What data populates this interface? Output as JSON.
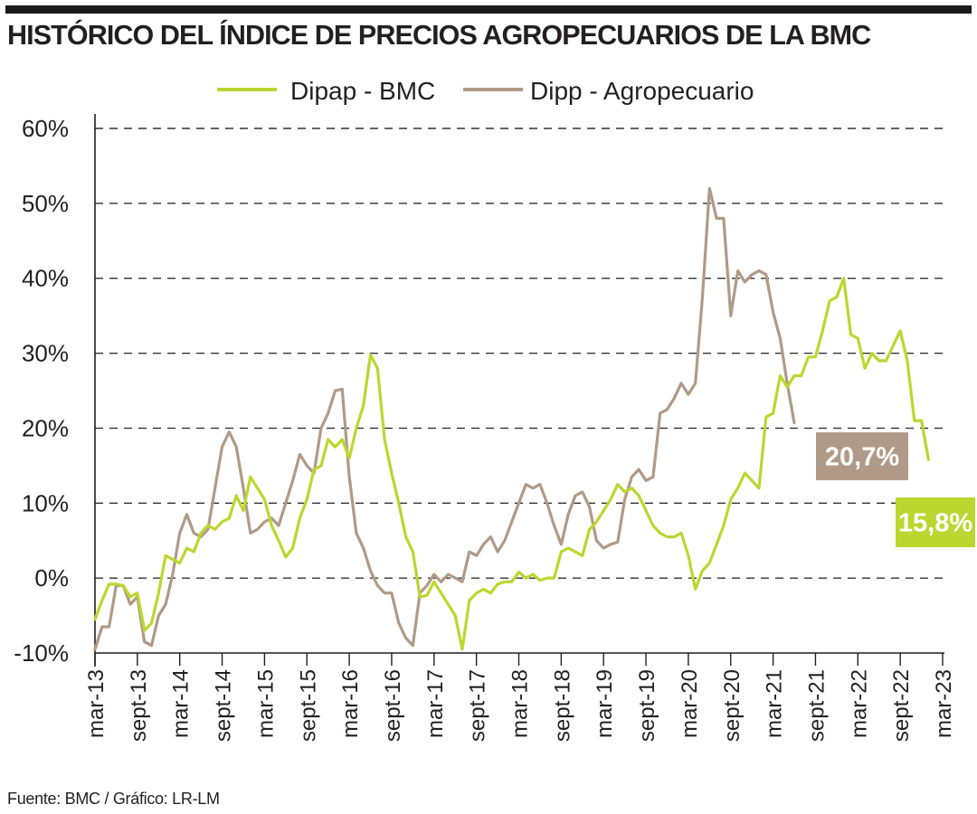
{
  "title": "HISTÓRICO DEL ÍNDICE DE PRECIOS AGROPECUARIOS DE LA BMC",
  "source": "Fuente: BMC / Gráfico: LR-LM",
  "colors": {
    "dipap": "#bcd630",
    "dipp": "#b09a87",
    "grid": "#333333"
  },
  "chart_data": {
    "type": "line",
    "ylim": [
      -10,
      60
    ],
    "y_ticks": [
      "60%",
      "50%",
      "40%",
      "30%",
      "20%",
      "10%",
      "0%",
      "-10%"
    ],
    "y_tick_values": [
      60,
      50,
      40,
      30,
      20,
      10,
      0,
      -10
    ],
    "x_range": [
      "2013-03",
      "2023-03"
    ],
    "x_ticks": [
      "mar-13",
      "sept-13",
      "mar-14",
      "sept-14",
      "mar-15",
      "sept-15",
      "mar-16",
      "sept-16",
      "mar-17",
      "sept-17",
      "mar-18",
      "sept-18",
      "mar-19",
      "sept-19",
      "mar-20",
      "sept-20",
      "mar-21",
      "sept-21",
      "mar-22",
      "sept-22",
      "mar-23"
    ],
    "x_tick_dates": [
      "2013-03",
      "2013-09",
      "2014-03",
      "2014-09",
      "2015-03",
      "2015-09",
      "2016-03",
      "2016-09",
      "2017-03",
      "2017-09",
      "2018-03",
      "2018-09",
      "2019-03",
      "2019-09",
      "2020-03",
      "2020-09",
      "2021-03",
      "2021-09",
      "2022-03",
      "2022-09",
      "2023-03"
    ],
    "grid": "horizontal dashed",
    "legend": "top-center",
    "series": [
      {
        "name": "Dipap - BMC",
        "color": "#bcd630",
        "points": [
          [
            "2013-03",
            -5.5
          ],
          [
            "2013-04",
            -3.0
          ],
          [
            "2013-05",
            -0.8
          ],
          [
            "2013-06",
            -0.8
          ],
          [
            "2013-07",
            -1.0
          ],
          [
            "2013-08",
            -2.5
          ],
          [
            "2013-09",
            -2.0
          ],
          [
            "2013-10",
            -7.0
          ],
          [
            "2013-11",
            -6.0
          ],
          [
            "2013-12",
            -2.0
          ],
          [
            "2014-01",
            3.0
          ],
          [
            "2014-02",
            2.5
          ],
          [
            "2014-03",
            2.0
          ],
          [
            "2014-04",
            4.0
          ],
          [
            "2014-05",
            3.5
          ],
          [
            "2014-06",
            6.0
          ],
          [
            "2014-07",
            7.0
          ],
          [
            "2014-08",
            6.5
          ],
          [
            "2014-09",
            7.5
          ],
          [
            "2014-10",
            8.0
          ],
          [
            "2014-11",
            11.0
          ],
          [
            "2014-12",
            9.0
          ],
          [
            "2015-01",
            13.5
          ],
          [
            "2015-02",
            12.0
          ],
          [
            "2015-03",
            10.5
          ],
          [
            "2015-04",
            7.0
          ],
          [
            "2015-05",
            5.0
          ],
          [
            "2015-06",
            2.8
          ],
          [
            "2015-07",
            4.0
          ],
          [
            "2015-08",
            8.0
          ],
          [
            "2015-09",
            10.5
          ],
          [
            "2015-10",
            14.5
          ],
          [
            "2015-11",
            15.0
          ],
          [
            "2015-12",
            18.5
          ],
          [
            "2016-01",
            17.5
          ],
          [
            "2016-02",
            18.5
          ],
          [
            "2016-03",
            16.0
          ],
          [
            "2016-04",
            20.0
          ],
          [
            "2016-05",
            23.0
          ],
          [
            "2016-06",
            29.8
          ],
          [
            "2016-07",
            28.0
          ],
          [
            "2016-08",
            18.5
          ],
          [
            "2016-09",
            14.0
          ],
          [
            "2016-10",
            10.0
          ],
          [
            "2016-11",
            5.5
          ],
          [
            "2016-12",
            3.5
          ],
          [
            "2017-01",
            -2.5
          ],
          [
            "2017-02",
            -2.3
          ],
          [
            "2017-03",
            -0.5
          ],
          [
            "2017-04",
            -2.0
          ],
          [
            "2017-05",
            -3.5
          ],
          [
            "2017-06",
            -5.0
          ],
          [
            "2017-07",
            -9.5
          ],
          [
            "2017-08",
            -3.0
          ],
          [
            "2017-09",
            -2.0
          ],
          [
            "2017-10",
            -1.5
          ],
          [
            "2017-11",
            -2.0
          ],
          [
            "2017-12",
            -0.8
          ],
          [
            "2018-01",
            -0.5
          ],
          [
            "2018-02",
            -0.5
          ],
          [
            "2018-03",
            0.8
          ],
          [
            "2018-04",
            0.0
          ],
          [
            "2018-05",
            0.5
          ],
          [
            "2018-06",
            -0.3
          ],
          [
            "2018-07",
            0.0
          ],
          [
            "2018-08",
            0.0
          ],
          [
            "2018-09",
            3.5
          ],
          [
            "2018-10",
            4.0
          ],
          [
            "2018-11",
            3.5
          ],
          [
            "2018-12",
            3.0
          ],
          [
            "2019-01",
            6.5
          ],
          [
            "2019-02",
            7.5
          ],
          [
            "2019-03",
            9.0
          ],
          [
            "2019-04",
            10.5
          ],
          [
            "2019-05",
            12.5
          ],
          [
            "2019-06",
            11.5
          ],
          [
            "2019-07",
            12.0
          ],
          [
            "2019-08",
            11.0
          ],
          [
            "2019-09",
            9.0
          ],
          [
            "2019-10",
            7.0
          ],
          [
            "2019-11",
            6.0
          ],
          [
            "2019-12",
            5.5
          ],
          [
            "2020-01",
            5.5
          ],
          [
            "2020-02",
            6.0
          ],
          [
            "2020-03",
            3.0
          ],
          [
            "2020-04",
            -1.5
          ],
          [
            "2020-05",
            1.0
          ],
          [
            "2020-06",
            2.0
          ],
          [
            "2020-07",
            4.5
          ],
          [
            "2020-08",
            7.0
          ],
          [
            "2020-09",
            10.5
          ],
          [
            "2020-10",
            12.0
          ],
          [
            "2020-11",
            14.0
          ],
          [
            "2020-12",
            13.0
          ],
          [
            "2021-01",
            12.0
          ],
          [
            "2021-02",
            21.5
          ],
          [
            "2021-03",
            22.0
          ],
          [
            "2021-04",
            27.0
          ],
          [
            "2021-05",
            25.5
          ],
          [
            "2021-06",
            27.0
          ],
          [
            "2021-07",
            27.0
          ],
          [
            "2021-08",
            29.5
          ],
          [
            "2021-09",
            29.5
          ],
          [
            "2021-10",
            33.0
          ],
          [
            "2021-11",
            37.0
          ],
          [
            "2021-12",
            37.5
          ],
          [
            "2022-01",
            40.0
          ],
          [
            "2022-02",
            32.5
          ],
          [
            "2022-03",
            32.0
          ],
          [
            "2022-04",
            28.0
          ],
          [
            "2022-05",
            30.0
          ],
          [
            "2022-06",
            29.0
          ],
          [
            "2022-07",
            29.0
          ],
          [
            "2022-08",
            31.0
          ],
          [
            "2022-09",
            33.0
          ],
          [
            "2022-10",
            29.0
          ],
          [
            "2022-11",
            21.0
          ],
          [
            "2022-12",
            21.0
          ],
          [
            "2023-01",
            15.8
          ]
        ]
      },
      {
        "name": "Dipp - Agropecuario",
        "color": "#b09a87",
        "points": [
          [
            "2013-03",
            -9.5
          ],
          [
            "2013-04",
            -6.5
          ],
          [
            "2013-05",
            -6.5
          ],
          [
            "2013-06",
            -1.0
          ],
          [
            "2013-07",
            -1.0
          ],
          [
            "2013-08",
            -3.5
          ],
          [
            "2013-09",
            -2.5
          ],
          [
            "2013-10",
            -8.5
          ],
          [
            "2013-11",
            -9.0
          ],
          [
            "2013-12",
            -5.0
          ],
          [
            "2014-01",
            -3.5
          ],
          [
            "2014-02",
            0.5
          ],
          [
            "2014-03",
            6.0
          ],
          [
            "2014-04",
            8.5
          ],
          [
            "2014-05",
            6.0
          ],
          [
            "2014-06",
            5.5
          ],
          [
            "2014-07",
            6.5
          ],
          [
            "2014-08",
            12.0
          ],
          [
            "2014-09",
            17.5
          ],
          [
            "2014-10",
            19.5
          ],
          [
            "2014-11",
            17.5
          ],
          [
            "2014-12",
            12.0
          ],
          [
            "2015-01",
            6.0
          ],
          [
            "2015-02",
            6.5
          ],
          [
            "2015-03",
            7.5
          ],
          [
            "2015-04",
            8.0
          ],
          [
            "2015-05",
            7.0
          ],
          [
            "2015-06",
            10.0
          ],
          [
            "2015-07",
            13.0
          ],
          [
            "2015-08",
            16.5
          ],
          [
            "2015-09",
            15.0
          ],
          [
            "2015-10",
            14.0
          ],
          [
            "2015-11",
            20.0
          ],
          [
            "2015-12",
            22.0
          ],
          [
            "2016-01",
            25.0
          ],
          [
            "2016-02",
            25.2
          ],
          [
            "2016-03",
            13.5
          ],
          [
            "2016-04",
            6.0
          ],
          [
            "2016-05",
            4.0
          ],
          [
            "2016-06",
            1.0
          ],
          [
            "2016-07",
            -1.0
          ],
          [
            "2016-08",
            -2.0
          ],
          [
            "2016-09",
            -2.0
          ],
          [
            "2016-10",
            -6.0
          ],
          [
            "2016-11",
            -8.0
          ],
          [
            "2016-12",
            -9.0
          ],
          [
            "2017-01",
            -2.0
          ],
          [
            "2017-02",
            -1.0
          ],
          [
            "2017-03",
            0.5
          ],
          [
            "2017-04",
            -0.5
          ],
          [
            "2017-05",
            0.5
          ],
          [
            "2017-06",
            0.0
          ],
          [
            "2017-07",
            -0.5
          ],
          [
            "2017-08",
            3.5
          ],
          [
            "2017-09",
            3.0
          ],
          [
            "2017-10",
            4.5
          ],
          [
            "2017-11",
            5.5
          ],
          [
            "2017-12",
            3.5
          ],
          [
            "2018-01",
            5.0
          ],
          [
            "2018-02",
            7.5
          ],
          [
            "2018-03",
            10.0
          ],
          [
            "2018-04",
            12.5
          ],
          [
            "2018-05",
            12.0
          ],
          [
            "2018-06",
            12.5
          ],
          [
            "2018-07",
            10.0
          ],
          [
            "2018-08",
            7.0
          ],
          [
            "2018-09",
            4.5
          ],
          [
            "2018-10",
            8.5
          ],
          [
            "2018-11",
            11.0
          ],
          [
            "2018-12",
            11.5
          ],
          [
            "2019-01",
            9.5
          ],
          [
            "2019-02",
            5.0
          ],
          [
            "2019-03",
            4.0
          ],
          [
            "2019-04",
            4.5
          ],
          [
            "2019-05",
            4.8
          ],
          [
            "2019-06",
            10.5
          ],
          [
            "2019-07",
            13.5
          ],
          [
            "2019-08",
            14.5
          ],
          [
            "2019-09",
            13.0
          ],
          [
            "2019-10",
            13.5
          ],
          [
            "2019-11",
            22.0
          ],
          [
            "2019-12",
            22.5
          ],
          [
            "2020-01",
            24.0
          ],
          [
            "2020-02",
            26.0
          ],
          [
            "2020-03",
            24.5
          ],
          [
            "2020-04",
            26.0
          ],
          [
            "2020-05",
            37.5
          ],
          [
            "2020-06",
            52.0
          ],
          [
            "2020-07",
            48.0
          ],
          [
            "2020-08",
            48.0
          ],
          [
            "2020-09",
            35.0
          ],
          [
            "2020-10",
            41.0
          ],
          [
            "2020-11",
            39.5
          ],
          [
            "2020-12",
            40.5
          ],
          [
            "2021-01",
            41.0
          ],
          [
            "2021-02",
            40.5
          ],
          [
            "2021-03",
            35.5
          ],
          [
            "2021-04",
            32.0
          ],
          [
            "2021-05",
            26.0
          ],
          [
            "2021-06",
            20.7
          ]
        ]
      }
    ],
    "annotations": [
      {
        "label": "20,7%",
        "series": "Dipp - Agropecuario"
      },
      {
        "label": "15,8%",
        "series": "Dipap - BMC"
      }
    ]
  }
}
